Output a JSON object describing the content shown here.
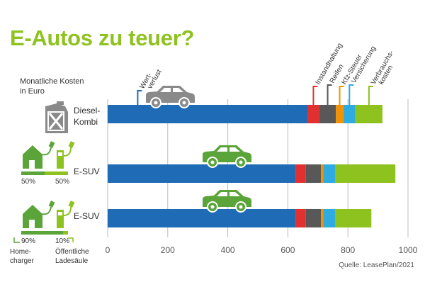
{
  "title": "E-Autos zu teuer?",
  "unit_label": [
    "Monatliche Kosten",
    "in Euro"
  ],
  "source": "Quelle: LeasePlan/2021",
  "colors": {
    "Wertverlust": "#1f6bb5",
    "Instandhaltung": "#e03030",
    "Reifen": "#585858",
    "Kfz-Steuer": "#f39200",
    "Versicherung": "#2eabe0",
    "Verbrauchskosten": "#8ec21f",
    "diesel_icon": "#8a8a8a",
    "ev_icon": "#5aa43a"
  },
  "callouts": [
    {
      "series": "Wertverlust",
      "lines": [
        "Wert-",
        "verlust"
      ]
    },
    {
      "series": "Instandhaltung",
      "lines": [
        "Instandhaltung"
      ]
    },
    {
      "series": "Reifen",
      "lines": [
        "Reifen"
      ]
    },
    {
      "series": "Kfz-Steuer",
      "lines": [
        "Kfz-Steuer"
      ]
    },
    {
      "series": "Versicherung",
      "lines": [
        "Versicherung"
      ]
    },
    {
      "series": "Verbrauchskosten",
      "lines": [
        "Verbrauchs-",
        "kosten"
      ]
    }
  ],
  "rows": [
    {
      "label_lines": [
        "Diesel-",
        "Kombi"
      ],
      "icon": "fuel-canister-icon",
      "car": "car-icon"
    },
    {
      "label_lines": [
        "E-SUV"
      ],
      "icon": "house-charger-icon",
      "car": "car-icon",
      "split": {
        "home": "50%",
        "public": "50%",
        "home_fraction": 0.5
      }
    },
    {
      "label_lines": [
        "E-SUV"
      ],
      "icon": "house-charger-icon",
      "car": "car-icon",
      "split": {
        "home": "90%",
        "public": "10%",
        "home_fraction": 0.9
      }
    }
  ],
  "legend_split": {
    "home": [
      "Home-",
      "charger"
    ],
    "public": [
      "Öffentliche",
      "Ladesäule"
    ]
  },
  "chart_data": {
    "type": "bar",
    "orientation": "horizontal",
    "stacked": true,
    "categories": [
      "Diesel-Kombi",
      "E-SUV",
      "E-SUV"
    ],
    "series": [
      {
        "name": "Wertverlust",
        "values": [
          665,
          627,
          627
        ]
      },
      {
        "name": "Instandhaltung",
        "values": [
          40,
          33,
          33
        ]
      },
      {
        "name": "Reifen",
        "values": [
          55,
          50,
          50
        ]
      },
      {
        "name": "Kfz-Steuer",
        "values": [
          25,
          8,
          8
        ]
      },
      {
        "name": "Versicherung",
        "values": [
          40,
          40,
          40
        ]
      },
      {
        "name": "Verbrauchskosten",
        "values": [
          90,
          200,
          120
        ]
      }
    ],
    "xlim": [
      0,
      1000
    ],
    "xticks": [
      0,
      200,
      400,
      600,
      800,
      1000
    ],
    "grid": "vertical",
    "xlabel": "",
    "ylabel": ""
  }
}
